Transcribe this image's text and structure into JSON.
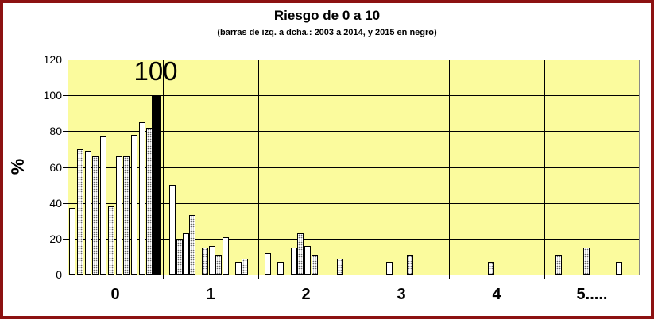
{
  "window": {
    "frame_border_color": "#8C1111",
    "background_color": "#FFFFFF"
  },
  "chart_data": {
    "type": "bar",
    "title": "Riesgo de 0 a 10",
    "subtitle": "(barras de izq. a dcha.: 2003 a 2014, y 2015 en negro)",
    "ylabel": "%",
    "xlabel": "",
    "ylim": [
      0,
      120
    ],
    "yticks": [
      "0",
      "20",
      "40",
      "60",
      "80",
      "100",
      "120"
    ],
    "grid": "on",
    "legend_position": "none",
    "plot_background": "#FBFB9D",
    "annotation": "100",
    "annotation_meaning": "black 2015 bar in category 0 reaches 100",
    "bar_styles": {
      "white": "white fill, black outline (odd years 2003-2013)",
      "dotted": "white fill with gray stipple dots, black outline (even years 2004-2014)",
      "black": "solid black (2015)"
    },
    "categories": [
      "0",
      "1",
      "2",
      "3",
      "4",
      "5....."
    ],
    "groups": [
      {
        "category": "0",
        "bars": [
          {
            "value": 37,
            "fill": "white",
            "x": 2
          },
          {
            "value": 70,
            "fill": "dotted",
            "x": 12
          },
          {
            "value": 69,
            "fill": "white",
            "x": 22
          },
          {
            "value": 66,
            "fill": "dotted",
            "x": 31
          },
          {
            "value": 77,
            "fill": "white",
            "x": 41
          },
          {
            "value": 38,
            "fill": "dotted",
            "x": 51
          },
          {
            "value": 66,
            "fill": "white",
            "x": 61
          },
          {
            "value": 66,
            "fill": "dotted",
            "x": 70
          },
          {
            "value": 78,
            "fill": "white",
            "x": 80
          },
          {
            "value": 85,
            "fill": "white",
            "x": 90
          },
          {
            "value": 82,
            "fill": "dotted",
            "x": 99
          },
          {
            "value": 100,
            "fill": "black",
            "x": 106
          }
        ]
      },
      {
        "category": "1",
        "bars": [
          {
            "value": 50,
            "fill": "white",
            "x": 8
          },
          {
            "value": 20,
            "fill": "dotted",
            "x": 17
          },
          {
            "value": 23,
            "fill": "white",
            "x": 25
          },
          {
            "value": 33,
            "fill": "dotted",
            "x": 33
          },
          {
            "value": 15,
            "fill": "dotted",
            "x": 49
          },
          {
            "value": 16,
            "fill": "white",
            "x": 58
          },
          {
            "value": 11,
            "fill": "dotted",
            "x": 66
          },
          {
            "value": 21,
            "fill": "white",
            "x": 75
          },
          {
            "value": 7,
            "fill": "white",
            "x": 91
          },
          {
            "value": 9,
            "fill": "dotted",
            "x": 99
          }
        ]
      },
      {
        "category": "2",
        "bars": [
          {
            "value": 12,
            "fill": "white",
            "x": 8
          },
          {
            "value": 7,
            "fill": "white",
            "x": 24
          },
          {
            "value": 15,
            "fill": "white",
            "x": 41
          },
          {
            "value": 23,
            "fill": "dotted",
            "x": 49
          },
          {
            "value": 16,
            "fill": "white",
            "x": 58
          },
          {
            "value": 11,
            "fill": "dotted",
            "x": 67
          },
          {
            "value": 9,
            "fill": "dotted",
            "x": 99
          }
        ]
      },
      {
        "category": "3",
        "bars": [
          {
            "value": 7,
            "fill": "white",
            "x": 41
          },
          {
            "value": 11,
            "fill": "dotted",
            "x": 67
          }
        ]
      },
      {
        "category": "4",
        "bars": [
          {
            "value": 7,
            "fill": "dotted",
            "x": 49
          }
        ]
      },
      {
        "category": "5.....",
        "bars": [
          {
            "value": 11,
            "fill": "dotted",
            "x": 14
          },
          {
            "value": 15,
            "fill": "dotted",
            "x": 49
          },
          {
            "value": 7,
            "fill": "white",
            "x": 90
          }
        ]
      }
    ]
  }
}
